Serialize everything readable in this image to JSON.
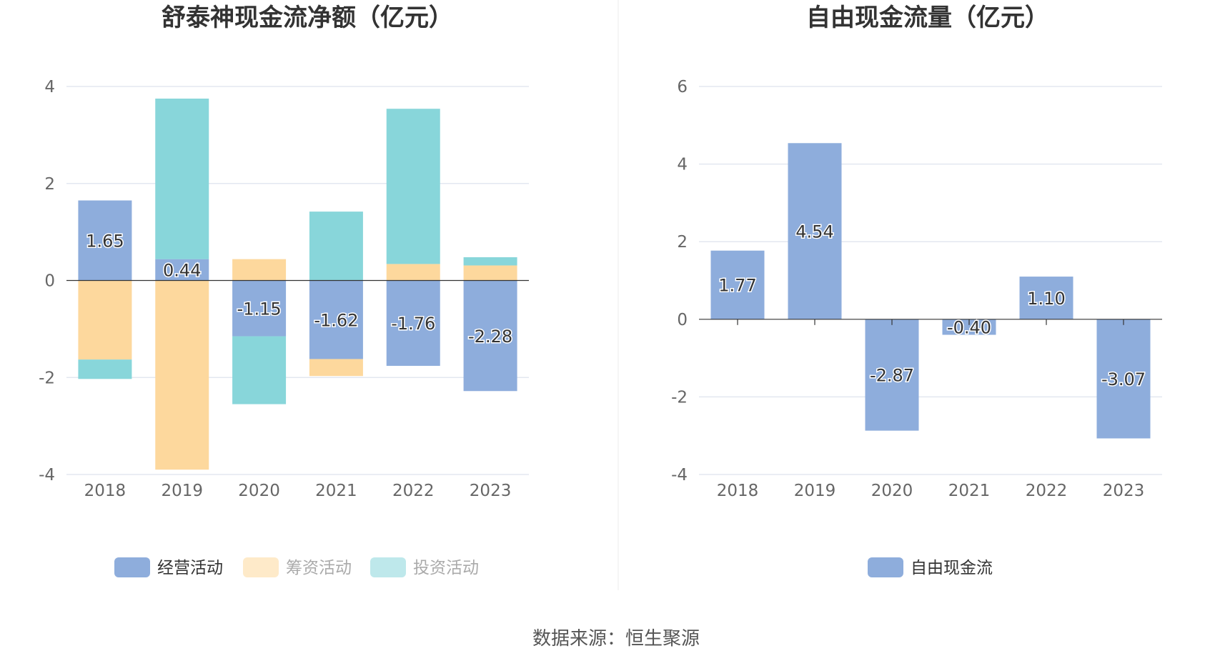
{
  "colors": {
    "operating": "#8eaddc",
    "financing": "#fdd89d",
    "investing": "#88d6da",
    "free_cash_flow": "#8eaddc",
    "grid": "#e3e7f0",
    "axis": "#333333"
  },
  "chart_data": [
    {
      "type": "bar",
      "stacked": true,
      "title": "舒泰神现金流净额（亿元）",
      "categories": [
        "2018",
        "2019",
        "2020",
        "2021",
        "2022",
        "2023"
      ],
      "ylim": [
        -4,
        4
      ],
      "yticks": [
        4,
        2,
        0,
        -2,
        -4
      ],
      "grid": true,
      "legend_position": "bottom",
      "series": [
        {
          "name": "经营活动",
          "values": [
            1.65,
            0.44,
            -1.15,
            -1.62,
            -1.76,
            -2.28
          ],
          "color_key": "operating",
          "labels": [
            "1.65",
            "0.44",
            "-1.15",
            "-1.62",
            "-1.76",
            "-2.28"
          ]
        },
        {
          "name": "筹资活动",
          "values": [
            -1.63,
            -3.9,
            0.44,
            -0.35,
            0.34,
            0.31
          ],
          "color_key": "financing"
        },
        {
          "name": "投资活动",
          "values": [
            -0.4,
            3.31,
            -1.4,
            1.42,
            3.2,
            0.17
          ],
          "color_key": "investing"
        }
      ]
    },
    {
      "type": "bar",
      "title": "自由现金流量（亿元）",
      "categories": [
        "2018",
        "2019",
        "2020",
        "2021",
        "2022",
        "2023"
      ],
      "ylim": [
        -4,
        6
      ],
      "yticks": [
        6,
        4,
        2,
        0,
        -2,
        -4
      ],
      "grid": true,
      "legend_position": "bottom",
      "series": [
        {
          "name": "自由现金流",
          "values": [
            1.77,
            4.54,
            -2.87,
            -0.4,
            1.1,
            -3.07
          ],
          "color_key": "free_cash_flow",
          "labels": [
            "1.77",
            "4.54",
            "-2.87",
            "-0.40",
            "1.10",
            "-3.07"
          ]
        }
      ]
    }
  ],
  "footer": {
    "source": "数据来源：恒生聚源"
  }
}
